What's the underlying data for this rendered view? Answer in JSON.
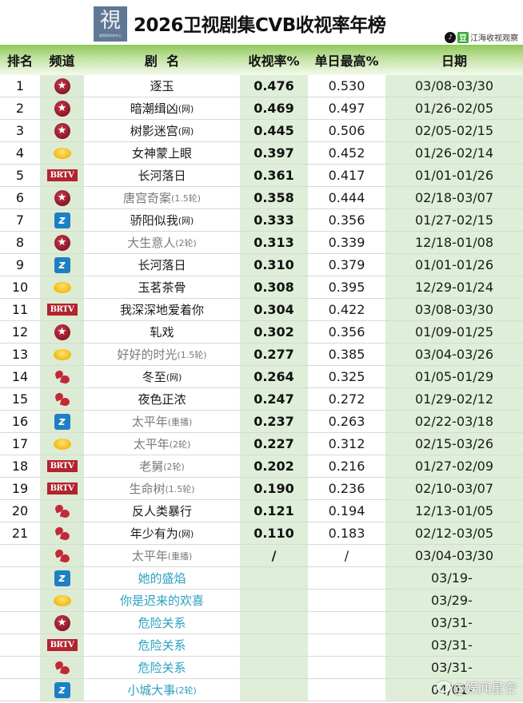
{
  "header": {
    "logo_glyph": "視",
    "logo_sub": "收视率研究中心",
    "title": "2026卫视剧集CVB收视率年榜",
    "source_tiktok": "♪",
    "source_dou": "豆",
    "source_name": "江海收视观察"
  },
  "columns": {
    "rank": "排名",
    "channel": "频道",
    "title": "剧  名",
    "rating": "收视率%",
    "peak": "单日最高%",
    "date": "日期"
  },
  "channel_icons": {
    "dragon": {
      "name": "dragon-tv-icon",
      "glyph": "★",
      "color": "#a31d2e"
    },
    "hunan": {
      "name": "hunan-tv-icon",
      "glyph": "",
      "color": "#f2b90f"
    },
    "brtv": {
      "name": "brtv-icon",
      "glyph": "BRTV",
      "color": "#b32430"
    },
    "zhejiang": {
      "name": "zhejiang-tv-icon",
      "glyph": "z",
      "color": "#1f7fc4"
    },
    "jiangsu": {
      "name": "jiangsu-tv-icon",
      "glyph": "",
      "color": "#c4283a"
    }
  },
  "rows": [
    {
      "rank": "1",
      "channel": "dragon",
      "title": "逐玉",
      "suffix": "",
      "style": "normal",
      "rating": "0.476",
      "peak": "0.530",
      "date": "03/08-03/30"
    },
    {
      "rank": "2",
      "channel": "dragon",
      "title": "暗潮缉凶",
      "suffix": "(网)",
      "style": "normal",
      "rating": "0.469",
      "peak": "0.497",
      "date": "01/26-02/05"
    },
    {
      "rank": "3",
      "channel": "dragon",
      "title": "树影迷宫",
      "suffix": "(网)",
      "style": "normal",
      "rating": "0.445",
      "peak": "0.506",
      "date": "02/05-02/15"
    },
    {
      "rank": "4",
      "channel": "hunan",
      "title": "女神蒙上眼",
      "suffix": "",
      "style": "normal",
      "rating": "0.397",
      "peak": "0.452",
      "date": "01/26-02/14"
    },
    {
      "rank": "5",
      "channel": "brtv",
      "title": "长河落日",
      "suffix": "",
      "style": "normal",
      "rating": "0.361",
      "peak": "0.417",
      "date": "01/01-01/26"
    },
    {
      "rank": "6",
      "channel": "dragon",
      "title": "唐宫奇案",
      "suffix": "(1.5轮)",
      "style": "gray",
      "rating": "0.358",
      "peak": "0.444",
      "date": "02/18-03/07"
    },
    {
      "rank": "7",
      "channel": "zhejiang",
      "title": "骄阳似我",
      "suffix": "(网)",
      "style": "normal",
      "rating": "0.333",
      "peak": "0.356",
      "date": "01/27-02/15"
    },
    {
      "rank": "8",
      "channel": "dragon",
      "title": "大生意人",
      "suffix": "(2轮)",
      "style": "gray",
      "rating": "0.313",
      "peak": "0.339",
      "date": "12/18-01/08"
    },
    {
      "rank": "9",
      "channel": "zhejiang",
      "title": "长河落日",
      "suffix": "",
      "style": "normal",
      "rating": "0.310",
      "peak": "0.379",
      "date": "01/01-01/26"
    },
    {
      "rank": "10",
      "channel": "hunan",
      "title": "玉茗茶骨",
      "suffix": "",
      "style": "normal",
      "rating": "0.308",
      "peak": "0.395",
      "date": "12/29-01/24"
    },
    {
      "rank": "11",
      "channel": "brtv",
      "title": "我深深地爱着你",
      "suffix": "",
      "style": "normal",
      "rating": "0.304",
      "peak": "0.422",
      "date": "03/08-03/30"
    },
    {
      "rank": "12",
      "channel": "dragon",
      "title": "轧戏",
      "suffix": "",
      "style": "normal",
      "rating": "0.302",
      "peak": "0.356",
      "date": "01/09-01/25"
    },
    {
      "rank": "13",
      "channel": "hunan",
      "title": "好好的时光",
      "suffix": "(1.5轮)",
      "style": "gray",
      "rating": "0.277",
      "peak": "0.385",
      "date": "03/04-03/26"
    },
    {
      "rank": "14",
      "channel": "jiangsu",
      "title": "冬至",
      "suffix": "(网)",
      "style": "normal",
      "rating": "0.264",
      "peak": "0.325",
      "date": "01/05-01/29"
    },
    {
      "rank": "15",
      "channel": "jiangsu",
      "title": "夜色正浓",
      "suffix": "",
      "style": "normal",
      "rating": "0.247",
      "peak": "0.272",
      "date": "01/29-02/12"
    },
    {
      "rank": "16",
      "channel": "zhejiang",
      "title": "太平年",
      "suffix": "(重播)",
      "style": "gray",
      "rating": "0.237",
      "peak": "0.263",
      "date": "02/22-03/18"
    },
    {
      "rank": "17",
      "channel": "hunan",
      "title": "太平年",
      "suffix": "(2轮)",
      "style": "gray",
      "rating": "0.227",
      "peak": "0.312",
      "date": "02/15-03/26"
    },
    {
      "rank": "18",
      "channel": "brtv",
      "title": "老舅",
      "suffix": "(2轮)",
      "style": "gray",
      "rating": "0.202",
      "peak": "0.216",
      "date": "01/27-02/09"
    },
    {
      "rank": "19",
      "channel": "brtv",
      "title": "生命树",
      "suffix": "(1.5轮)",
      "style": "gray",
      "rating": "0.190",
      "peak": "0.236",
      "date": "02/10-03/07"
    },
    {
      "rank": "20",
      "channel": "jiangsu",
      "title": "反人类暴行",
      "suffix": "",
      "style": "normal",
      "rating": "0.121",
      "peak": "0.194",
      "date": "12/13-01/05"
    },
    {
      "rank": "21",
      "channel": "jiangsu",
      "title": "年少有为",
      "suffix": "(网)",
      "style": "normal",
      "rating": "0.110",
      "peak": "0.183",
      "date": "02/12-03/05"
    },
    {
      "rank": "",
      "channel": "jiangsu",
      "title": "太平年",
      "suffix": "(重播)",
      "style": "gray",
      "rating": "/",
      "peak": "/",
      "date": "03/04-03/30"
    },
    {
      "rank": "",
      "channel": "zhejiang",
      "title": "她的盛焰",
      "suffix": "",
      "style": "blue",
      "rating": "",
      "peak": "",
      "date": "03/19-",
      "date_left": true
    },
    {
      "rank": "",
      "channel": "hunan",
      "title": "你是迟来的欢喜",
      "suffix": "",
      "style": "blue",
      "rating": "",
      "peak": "",
      "date": "03/29-",
      "date_left": true
    },
    {
      "rank": "",
      "channel": "dragon",
      "title": "危险关系",
      "suffix": "",
      "style": "blue",
      "rating": "",
      "peak": "",
      "date": "03/31-",
      "date_left": true
    },
    {
      "rank": "",
      "channel": "brtv",
      "title": "危险关系",
      "suffix": "",
      "style": "blue",
      "rating": "",
      "peak": "",
      "date": "03/31-",
      "date_left": true
    },
    {
      "rank": "",
      "channel": "jiangsu",
      "title": "危险关系",
      "suffix": "",
      "style": "blue",
      "rating": "",
      "peak": "",
      "date": "03/31-",
      "date_left": true
    },
    {
      "rank": "",
      "channel": "zhejiang",
      "title": "小城大事",
      "suffix": "(2轮)",
      "style": "blue",
      "rating": "",
      "peak": "",
      "date": "04/01-",
      "date_left": true
    }
  ],
  "watermark": {
    "text": "@娱闻星空"
  },
  "colors": {
    "header_green": "#8ec859",
    "column_green": "#dfeed8",
    "channel_column": "#dcecd4",
    "upcoming_title": "#2aa0c0",
    "rerun_title": "#7a7a7a"
  }
}
